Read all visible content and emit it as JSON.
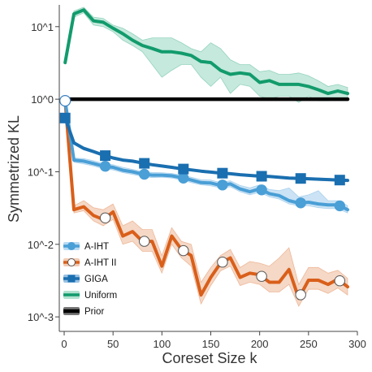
{
  "chart_data": {
    "type": "line",
    "xlabel": "Coreset Size k",
    "ylabel": "Symmetrized KL",
    "xlim": [
      -5,
      300
    ],
    "ylim_log10": [
      -3.2,
      1.3
    ],
    "y_scale": "log",
    "grid": false,
    "legend_position": "bottom-left",
    "x_ticks": [
      0,
      50,
      100,
      150,
      200,
      250,
      300
    ],
    "x_tick_labels": [
      "0",
      "50",
      "100",
      "150",
      "200",
      "250",
      "300"
    ],
    "y_ticks_log10": [
      1,
      0,
      -1,
      -2,
      -3
    ],
    "y_tick_labels": [
      "10^1",
      "10^0",
      "10^-1",
      "10^-2",
      "10^-3"
    ],
    "series": [
      {
        "name": "A-IHT",
        "color": "#4a9fd6",
        "band_color": "#a8d1ef",
        "marker": "circle",
        "marker_fill": "#4a9fd6",
        "x": [
          1,
          10,
          20,
          30,
          40,
          50,
          60,
          70,
          80,
          90,
          100,
          110,
          120,
          130,
          140,
          150,
          160,
          170,
          180,
          190,
          200,
          210,
          220,
          230,
          240,
          250,
          260,
          270,
          280,
          290
        ],
        "y": [
          0.95,
          0.145,
          0.14,
          0.13,
          0.12,
          0.115,
          0.105,
          0.1,
          0.093,
          0.09,
          0.09,
          0.088,
          0.083,
          0.077,
          0.071,
          0.07,
          0.065,
          0.068,
          0.058,
          0.053,
          0.058,
          0.05,
          0.047,
          0.04,
          0.037,
          0.038,
          0.036,
          0.035,
          0.035,
          0.03
        ],
        "y_low": [
          0.9,
          0.135,
          0.128,
          0.12,
          0.11,
          0.106,
          0.097,
          0.092,
          0.086,
          0.083,
          0.084,
          0.082,
          0.077,
          0.071,
          0.066,
          0.064,
          0.06,
          0.062,
          0.053,
          0.048,
          0.052,
          0.045,
          0.042,
          0.036,
          0.034,
          0.034,
          0.032,
          0.031,
          0.031,
          0.027
        ],
        "y_high": [
          1.0,
          0.155,
          0.152,
          0.142,
          0.13,
          0.125,
          0.115,
          0.108,
          0.101,
          0.098,
          0.097,
          0.095,
          0.09,
          0.084,
          0.078,
          0.077,
          0.071,
          0.075,
          0.065,
          0.06,
          0.066,
          0.057,
          0.055,
          0.06,
          0.045,
          0.048,
          0.055,
          0.04,
          0.04,
          0.034
        ],
        "marker_x": [
          42,
          82,
          122,
          162,
          202,
          242,
          282
        ]
      },
      {
        "name": "A-IHT II",
        "color": "#d95f1a",
        "band_color": "#efbea0",
        "marker": "circle",
        "marker_fill": "#ffffff",
        "x": [
          1,
          10,
          20,
          30,
          40,
          50,
          60,
          70,
          80,
          90,
          100,
          110,
          120,
          130,
          140,
          150,
          160,
          170,
          180,
          190,
          200,
          210,
          220,
          230,
          240,
          250,
          260,
          270,
          280,
          290
        ],
        "y": [
          0.95,
          0.03,
          0.033,
          0.025,
          0.022,
          0.028,
          0.013,
          0.015,
          0.011,
          0.011,
          0.005,
          0.013,
          0.0085,
          0.007,
          0.002,
          0.0035,
          0.0055,
          0.0065,
          0.0035,
          0.004,
          0.0038,
          0.003,
          0.003,
          0.0045,
          0.0018,
          0.0032,
          0.0032,
          0.0028,
          0.0033,
          0.0026
        ],
        "y_low": [
          0.9,
          0.027,
          0.029,
          0.021,
          0.018,
          0.022,
          0.01,
          0.011,
          0.008,
          0.008,
          0.004,
          0.01,
          0.0065,
          0.005,
          0.0015,
          0.0027,
          0.0043,
          0.005,
          0.0027,
          0.003,
          0.0028,
          0.0022,
          0.0022,
          0.0028,
          0.0014,
          0.0024,
          0.0024,
          0.0021,
          0.0025,
          0.002
        ],
        "y_high": [
          1.0,
          0.034,
          0.04,
          0.032,
          0.03,
          0.036,
          0.018,
          0.021,
          0.016,
          0.016,
          0.007,
          0.017,
          0.011,
          0.01,
          0.003,
          0.0048,
          0.007,
          0.0085,
          0.0048,
          0.0058,
          0.0055,
          0.005,
          0.0065,
          0.009,
          0.0028,
          0.0048,
          0.0048,
          0.004,
          0.0044,
          0.0034
        ],
        "marker_x": [
          42,
          82,
          122,
          162,
          202,
          242,
          282
        ]
      },
      {
        "name": "GIGA",
        "color": "#1a6fb0",
        "band_color": "#7fb2dc",
        "marker": "square",
        "marker_fill": "#1a6fb0",
        "x": [
          1,
          10,
          20,
          30,
          40,
          50,
          60,
          70,
          80,
          90,
          100,
          110,
          120,
          130,
          140,
          150,
          160,
          170,
          180,
          190,
          200,
          210,
          220,
          230,
          240,
          250,
          260,
          270,
          280,
          290
        ],
        "y": [
          0.55,
          0.25,
          0.21,
          0.19,
          0.17,
          0.155,
          0.145,
          0.14,
          0.132,
          0.125,
          0.12,
          0.115,
          0.11,
          0.106,
          0.102,
          0.099,
          0.096,
          0.094,
          0.091,
          0.089,
          0.087,
          0.086,
          0.084,
          0.082,
          0.081,
          0.08,
          0.079,
          0.078,
          0.077,
          0.076
        ],
        "y_low": [
          0.52,
          0.24,
          0.2,
          0.182,
          0.164,
          0.15,
          0.14,
          0.135,
          0.128,
          0.121,
          0.116,
          0.111,
          0.107,
          0.103,
          0.099,
          0.096,
          0.093,
          0.091,
          0.088,
          0.086,
          0.084,
          0.083,
          0.081,
          0.079,
          0.078,
          0.077,
          0.076,
          0.075,
          0.074,
          0.073
        ],
        "y_high": [
          0.58,
          0.26,
          0.22,
          0.198,
          0.176,
          0.16,
          0.15,
          0.145,
          0.136,
          0.129,
          0.124,
          0.119,
          0.113,
          0.109,
          0.105,
          0.102,
          0.099,
          0.097,
          0.094,
          0.092,
          0.09,
          0.089,
          0.087,
          0.085,
          0.084,
          0.083,
          0.082,
          0.081,
          0.08,
          0.079
        ],
        "marker_x": [
          1,
          42,
          82,
          122,
          162,
          202,
          242,
          282
        ]
      },
      {
        "name": "Uniform",
        "color": "#129b6c",
        "band_color": "#9fdac4",
        "marker": "none",
        "x": [
          1,
          10,
          20,
          30,
          40,
          50,
          60,
          70,
          80,
          90,
          100,
          110,
          120,
          130,
          140,
          150,
          160,
          170,
          180,
          190,
          200,
          210,
          220,
          230,
          240,
          250,
          260,
          270,
          280,
          290
        ],
        "y": [
          3.2,
          15.0,
          17.0,
          12.0,
          11.5,
          9.5,
          8.0,
          6.5,
          5.5,
          5.0,
          4.5,
          4.5,
          4.3,
          4.0,
          3.3,
          3.2,
          2.5,
          2.2,
          2.3,
          2.2,
          1.7,
          1.8,
          1.6,
          1.6,
          1.6,
          1.5,
          1.35,
          1.2,
          1.3,
          1.2
        ],
        "y_low": [
          3.0,
          13.5,
          15.5,
          10.5,
          10.0,
          8.5,
          6.5,
          5.5,
          4.5,
          3.0,
          2.0,
          2.5,
          3.0,
          3.0,
          2.0,
          1.5,
          2.0,
          1.2,
          1.6,
          1.5,
          1.1,
          1.0,
          1.1,
          1.1,
          0.9,
          1.1,
          0.95,
          0.95,
          1.0,
          1.0
        ],
        "y_high": [
          3.4,
          16.5,
          18.5,
          13.5,
          13.0,
          10.5,
          9.5,
          8.0,
          6.5,
          7.0,
          7.0,
          7.0,
          6.0,
          5.0,
          4.5,
          6.0,
          5.0,
          3.5,
          3.0,
          3.0,
          2.4,
          2.5,
          2.2,
          2.2,
          2.3,
          2.1,
          1.8,
          1.5,
          1.6,
          1.45
        ]
      },
      {
        "name": "Prior",
        "color": "#000000",
        "band_color": "#555555",
        "marker": "none",
        "x": [
          1,
          290
        ],
        "y": [
          1.0,
          1.0
        ]
      }
    ]
  }
}
